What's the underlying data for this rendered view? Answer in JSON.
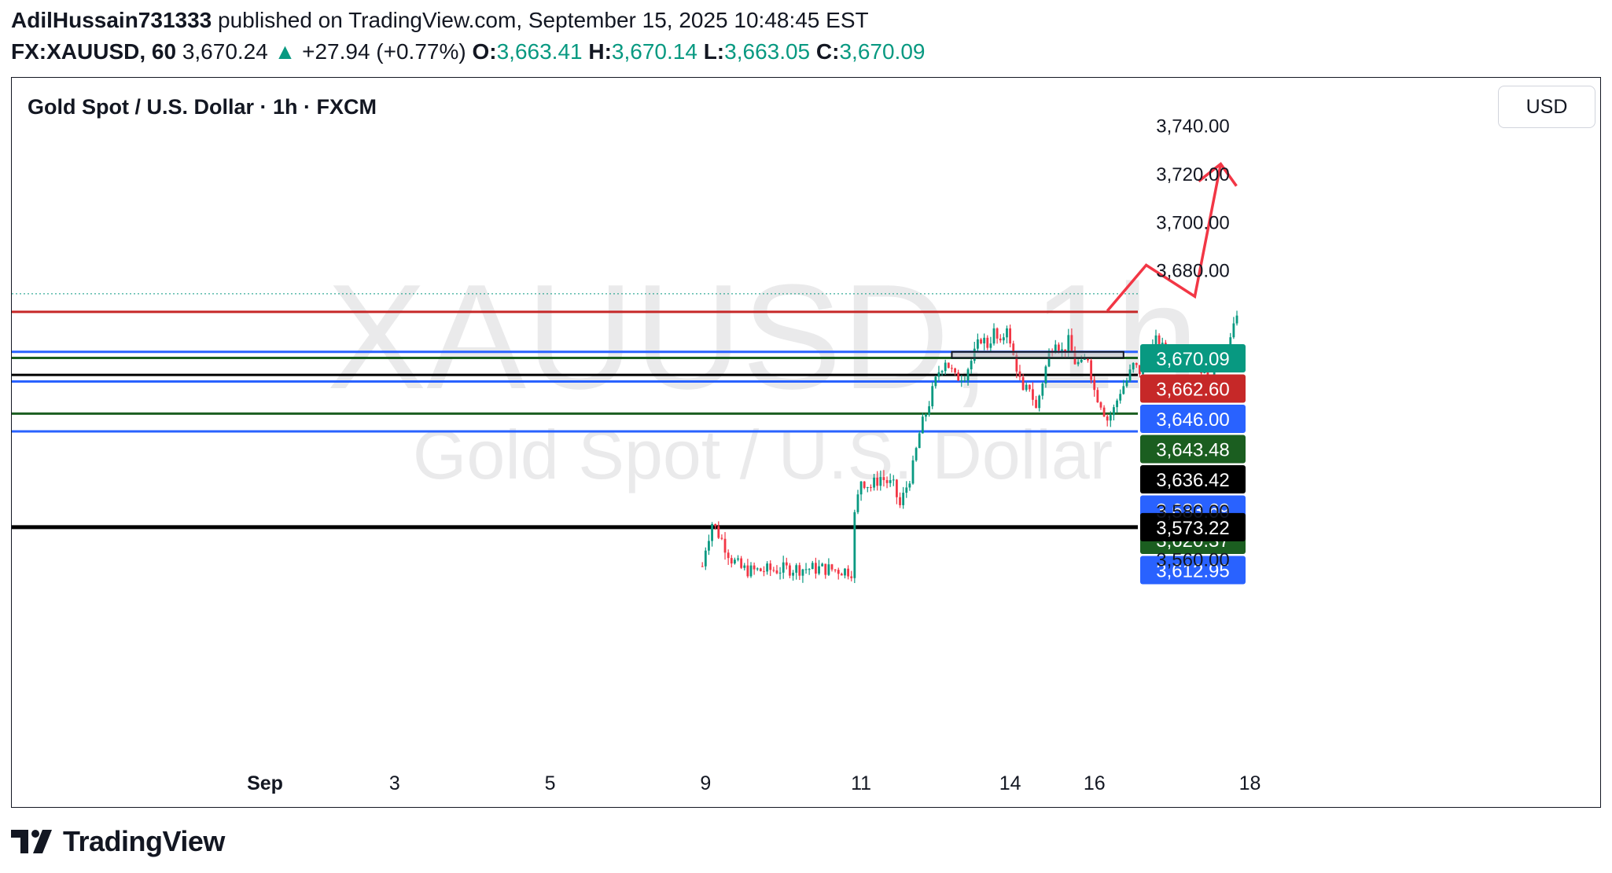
{
  "header": {
    "author": "AdilHussain731333",
    "published_text": "published on TradingView.com, September 15, 2025 10:48:45 EST",
    "symbol_interval": "FX:XAUUSD, 60",
    "last_price": "3,670.24",
    "change_arrow": "▲",
    "change_text": "+27.94 (+0.77%)",
    "o_label": "O:",
    "o_value": "3,663.41",
    "h_label": "H:",
    "h_value": "3,670.14",
    "l_label": "L:",
    "l_value": "3,663.05",
    "c_label": "C:",
    "c_value": "3,670.09"
  },
  "chart_title": "Gold Spot / U.S. Dollar · 1h · FXCM",
  "currency_button": "USD",
  "watermark": {
    "symbol": "XAUUSD, 1h",
    "name": "Gold Spot / U.S. Dollar"
  },
  "footer": {
    "brand": "TradingView"
  },
  "colors": {
    "up": "#089981",
    "down": "#f23645",
    "accent_blue": "#2962ff",
    "dark_green": "#1b5e20",
    "red_line": "#c62828",
    "arrow": "#f23645"
  },
  "chart_data": {
    "type": "candlestick",
    "ylim": [
      3550,
      3750
    ],
    "y_ticks": [
      {
        "value": 3740,
        "label": "3,740.00"
      },
      {
        "value": 3720,
        "label": "3,720.00"
      },
      {
        "value": 3700,
        "label": "3,700.00"
      },
      {
        "value": 3680,
        "label": "3,680.00"
      },
      {
        "value": 3580,
        "label": "3,580.00"
      },
      {
        "value": 3560,
        "label": "3,560.00"
      }
    ],
    "x_ticks": [
      {
        "label": "Sep",
        "bold": true,
        "slot": 0
      },
      {
        "label": "3",
        "slot": 40
      },
      {
        "label": "5",
        "slot": 88
      },
      {
        "label": "9",
        "slot": 136
      },
      {
        "label": "11",
        "slot": 184
      },
      {
        "label": "14",
        "slot": 230
      },
      {
        "label": "16",
        "slot": 256
      },
      {
        "label": "18",
        "slot": 304
      }
    ],
    "last_price_line": 3670.09,
    "horizontal_levels": [
      {
        "value": 3670.09,
        "label": "3,670.09",
        "color": "#089981",
        "style": "dotted"
      },
      {
        "value": 3662.6,
        "label": "3,662.60",
        "color": "#c62828",
        "style": "solid"
      },
      {
        "value": 3646.0,
        "label": "3,646.00",
        "color": "#2962ff",
        "style": "solid"
      },
      {
        "value": 3643.48,
        "label": "3,643.48",
        "color": "#1b5e20",
        "style": "solid"
      },
      {
        "value": 3636.42,
        "label": "3,636.42",
        "color": "#000000",
        "style": "solid"
      },
      {
        "value": 3633.69,
        "label": "3,633.69",
        "color": "#2962ff",
        "style": "solid"
      },
      {
        "value": 3620.37,
        "label": "3,620.37",
        "color": "#1b5e20",
        "style": "solid"
      },
      {
        "value": 3612.95,
        "label": "3,612.95",
        "color": "#2962ff",
        "style": "solid"
      },
      {
        "value": 3573.22,
        "label": "3,573.22",
        "color": "#000000",
        "style": "thick"
      }
    ],
    "zone_box": {
      "from_slot": 212,
      "to_slot": 265,
      "top": 3646.0,
      "bottom": 3643.48
    },
    "projection_path": [
      {
        "slot": 260,
        "value": 3663
      },
      {
        "slot": 272,
        "value": 3682
      },
      {
        "slot": 287,
        "value": 3669
      },
      {
        "slot": 295,
        "value": 3724
      }
    ],
    "price_path": [
      {
        "slot": 135,
        "value": 3557
      },
      {
        "slot": 136,
        "value": 3565
      },
      {
        "slot": 138,
        "value": 3575
      },
      {
        "slot": 141,
        "value": 3568
      },
      {
        "slot": 144,
        "value": 3560
      },
      {
        "slot": 147,
        "value": 3556
      },
      {
        "slot": 150,
        "value": 3555
      },
      {
        "slot": 163,
        "value": 3556
      },
      {
        "slot": 172,
        "value": 3556
      },
      {
        "slot": 181,
        "value": 3555
      },
      {
        "slot": 182,
        "value": 3578
      },
      {
        "slot": 184,
        "value": 3593
      },
      {
        "slot": 187,
        "value": 3590
      },
      {
        "slot": 190,
        "value": 3594
      },
      {
        "slot": 194,
        "value": 3590
      },
      {
        "slot": 196,
        "value": 3582
      },
      {
        "slot": 198,
        "value": 3590
      },
      {
        "slot": 200,
        "value": 3598
      },
      {
        "slot": 202,
        "value": 3612
      },
      {
        "slot": 205,
        "value": 3625
      },
      {
        "slot": 208,
        "value": 3638
      },
      {
        "slot": 210,
        "value": 3643
      },
      {
        "slot": 213,
        "value": 3635
      },
      {
        "slot": 216,
        "value": 3637
      },
      {
        "slot": 219,
        "value": 3645
      },
      {
        "slot": 221,
        "value": 3652
      },
      {
        "slot": 223,
        "value": 3649
      },
      {
        "slot": 225,
        "value": 3654
      },
      {
        "slot": 227,
        "value": 3648
      },
      {
        "slot": 229,
        "value": 3658
      },
      {
        "slot": 230,
        "value": 3648
      },
      {
        "slot": 232,
        "value": 3640
      },
      {
        "slot": 234,
        "value": 3628
      },
      {
        "slot": 236,
        "value": 3632
      },
      {
        "slot": 238,
        "value": 3622
      },
      {
        "slot": 240,
        "value": 3634
      },
      {
        "slot": 242,
        "value": 3645
      },
      {
        "slot": 244,
        "value": 3652
      },
      {
        "slot": 246,
        "value": 3646
      },
      {
        "slot": 248,
        "value": 3650
      },
      {
        "slot": 250,
        "value": 3642
      },
      {
        "slot": 252,
        "value": 3640
      },
      {
        "slot": 254,
        "value": 3644
      },
      {
        "slot": 256,
        "value": 3630
      },
      {
        "slot": 258,
        "value": 3625
      },
      {
        "slot": 260,
        "value": 3618
      },
      {
        "slot": 262,
        "value": 3622
      },
      {
        "slot": 264,
        "value": 3630
      },
      {
        "slot": 266,
        "value": 3634
      },
      {
        "slot": 268,
        "value": 3640
      },
      {
        "slot": 270,
        "value": 3638
      },
      {
        "slot": 272,
        "value": 3643
      },
      {
        "slot": 275,
        "value": 3650
      },
      {
        "slot": 278,
        "value": 3646
      },
      {
        "slot": 281,
        "value": 3642
      },
      {
        "slot": 284,
        "value": 3645
      },
      {
        "slot": 287,
        "value": 3648
      },
      {
        "slot": 289,
        "value": 3640
      },
      {
        "slot": 291,
        "value": 3632
      },
      {
        "slot": 293,
        "value": 3644
      },
      {
        "slot": 295,
        "value": 3638
      },
      {
        "slot": 297,
        "value": 3646
      },
      {
        "slot": 299,
        "value": 3655
      },
      {
        "slot": 300,
        "value": 3663
      },
      {
        "slot": 301,
        "value": 3670
      }
    ]
  }
}
